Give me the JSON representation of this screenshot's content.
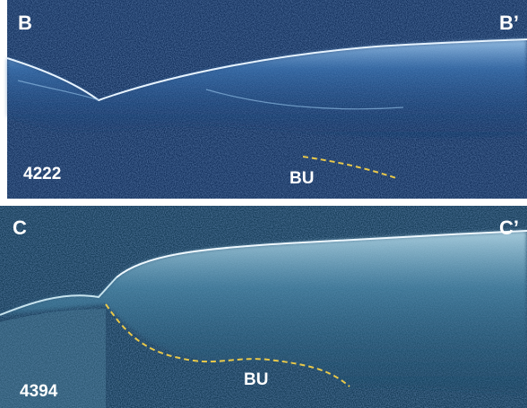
{
  "panels": [
    {
      "label_left": "B",
      "label_right": "B’",
      "sample_id": "4222",
      "region_label": "BU"
    },
    {
      "label_left": "C",
      "label_right": "C’",
      "sample_id": "4394",
      "region_label": "BU"
    }
  ]
}
